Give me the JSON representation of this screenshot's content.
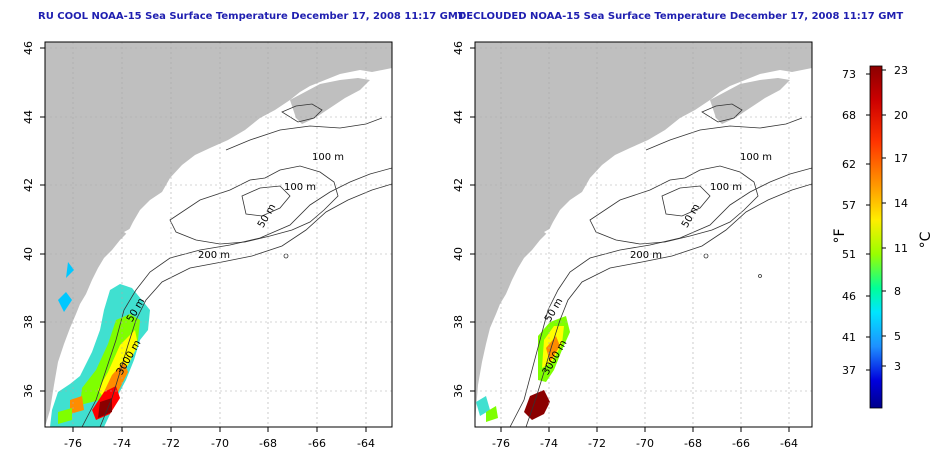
{
  "panels": [
    {
      "title": "RU COOL NOAA-15 Sea Surface Temperature December 17, 2008 11:17 GMT"
    },
    {
      "title": "DECLOUDED NOAA-15 Sea Surface Temperature December 17, 2008 11:17 GMT"
    }
  ],
  "map": {
    "lon_ticks": [
      "-76",
      "-74",
      "-72",
      "-70",
      "-68",
      "-66",
      "-64"
    ],
    "lat_ticks": [
      "36",
      "38",
      "40",
      "42",
      "44",
      "46"
    ],
    "contour_labels": [
      "100 m",
      "100 m",
      "50 m",
      "200 m",
      "50 m",
      "3000 m"
    ],
    "colors": {
      "land": "#bfbfbf",
      "ocean": "#ffffff",
      "grid": "#aaaaaa"
    }
  },
  "colorbar": {
    "fahrenheit_ticks": [
      "73",
      "68",
      "62",
      "57",
      "51",
      "46",
      "41",
      "37"
    ],
    "celsius_ticks": [
      "23",
      "20",
      "17",
      "14",
      "11",
      "8",
      "5",
      "3"
    ],
    "fahrenheit_unit": "°F",
    "celsius_unit": "°C",
    "colors": [
      "#8b0000",
      "#ff0000",
      "#ff8c00",
      "#ffff00",
      "#7fff00",
      "#00e5ff",
      "#1e90ff",
      "#0000cd",
      "#00008b"
    ]
  }
}
